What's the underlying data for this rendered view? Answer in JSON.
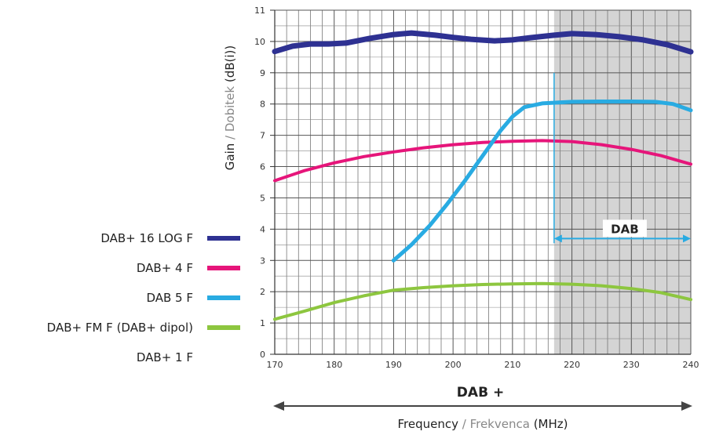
{
  "chart_data": {
    "type": "line",
    "ylabel_parts": [
      {
        "text": "Gain",
        "color": "#222222"
      },
      {
        "text": " / ",
        "color": "#888888"
      },
      {
        "text": "Dobitek",
        "color": "#888888"
      },
      {
        "text": " (dB(i))",
        "color": "#222222"
      }
    ],
    "xlabel_parts": [
      {
        "text": "Frequency",
        "color": "#222222"
      },
      {
        "text": " / ",
        "color": "#888888"
      },
      {
        "text": "Frekvenca",
        "color": "#888888"
      },
      {
        "text": " (MHz)",
        "color": "#222222"
      }
    ],
    "band_label": "DAB +",
    "dab_region_label": "DAB",
    "xlim": [
      170,
      240
    ],
    "ylim": [
      0,
      11
    ],
    "x_ticks": [
      "170",
      "180",
      "190",
      "200",
      "210",
      "220",
      "230",
      "240"
    ],
    "y_ticks": [
      "0",
      "1",
      "2",
      "3",
      "4",
      "5",
      "6",
      "7",
      "8",
      "9",
      "10",
      "11"
    ],
    "grid": true,
    "shaded_region": [
      217,
      240
    ],
    "dab_arrow": {
      "from": 217,
      "to": 240,
      "y": 3.7
    },
    "series": [
      {
        "name": "DAB+ 16 LOG F",
        "color": "#2e3192",
        "width": 7,
        "points": [
          [
            170,
            9.68
          ],
          [
            173,
            9.85
          ],
          [
            176,
            9.92
          ],
          [
            179,
            9.92
          ],
          [
            182,
            9.95
          ],
          [
            186,
            10.1
          ],
          [
            190,
            10.22
          ],
          [
            193,
            10.27
          ],
          [
            197,
            10.2
          ],
          [
            200,
            10.13
          ],
          [
            203,
            10.07
          ],
          [
            207,
            10.02
          ],
          [
            210,
            10.05
          ],
          [
            213,
            10.12
          ],
          [
            217,
            10.2
          ],
          [
            220,
            10.25
          ],
          [
            224,
            10.22
          ],
          [
            228,
            10.15
          ],
          [
            232,
            10.05
          ],
          [
            236,
            9.9
          ],
          [
            240,
            9.67
          ]
        ]
      },
      {
        "name": "DAB+ 4 F",
        "color": "#e6157a",
        "width": 4,
        "points": [
          [
            170,
            5.55
          ],
          [
            175,
            5.87
          ],
          [
            180,
            6.12
          ],
          [
            185,
            6.32
          ],
          [
            190,
            6.47
          ],
          [
            195,
            6.6
          ],
          [
            200,
            6.7
          ],
          [
            205,
            6.77
          ],
          [
            210,
            6.81
          ],
          [
            215,
            6.83
          ],
          [
            220,
            6.8
          ],
          [
            225,
            6.7
          ],
          [
            230,
            6.55
          ],
          [
            235,
            6.35
          ],
          [
            240,
            6.08
          ]
        ]
      },
      {
        "name": "DAB 5 F",
        "color": "#29abe2",
        "width": 5,
        "points": [
          [
            190,
            3.0
          ],
          [
            193,
            3.5
          ],
          [
            196,
            4.1
          ],
          [
            199,
            4.8
          ],
          [
            202,
            5.55
          ],
          [
            205,
            6.35
          ],
          [
            208,
            7.15
          ],
          [
            210,
            7.6
          ],
          [
            212,
            7.9
          ],
          [
            215,
            8.02
          ],
          [
            220,
            8.07
          ],
          [
            225,
            8.08
          ],
          [
            230,
            8.08
          ],
          [
            234,
            8.07
          ],
          [
            237,
            8.0
          ],
          [
            240,
            7.8
          ]
        ]
      },
      {
        "name": "DAB+ FM F (DAB+ dipol)",
        "color": "#8dc63f",
        "width": 4,
        "points": [
          [
            170,
            1.12
          ],
          [
            175,
            1.38
          ],
          [
            180,
            1.65
          ],
          [
            185,
            1.87
          ],
          [
            190,
            2.05
          ],
          [
            195,
            2.13
          ],
          [
            200,
            2.19
          ],
          [
            205,
            2.23
          ],
          [
            210,
            2.25
          ],
          [
            215,
            2.26
          ],
          [
            220,
            2.24
          ],
          [
            225,
            2.19
          ],
          [
            230,
            2.1
          ],
          [
            235,
            1.97
          ],
          [
            240,
            1.75
          ]
        ]
      }
    ],
    "legend": [
      {
        "label": "DAB+ 16 LOG F",
        "color": "#2e3192"
      },
      {
        "label": "DAB+ 4 F",
        "color": "#e6157a"
      },
      {
        "label": "DAB 5 F",
        "color": "#29abe2"
      },
      {
        "label": "DAB+ FM F (DAB+ dipol)",
        "color": "#8dc63f"
      },
      {
        "label": "DAB+ 1 F",
        "color": ""
      }
    ]
  }
}
